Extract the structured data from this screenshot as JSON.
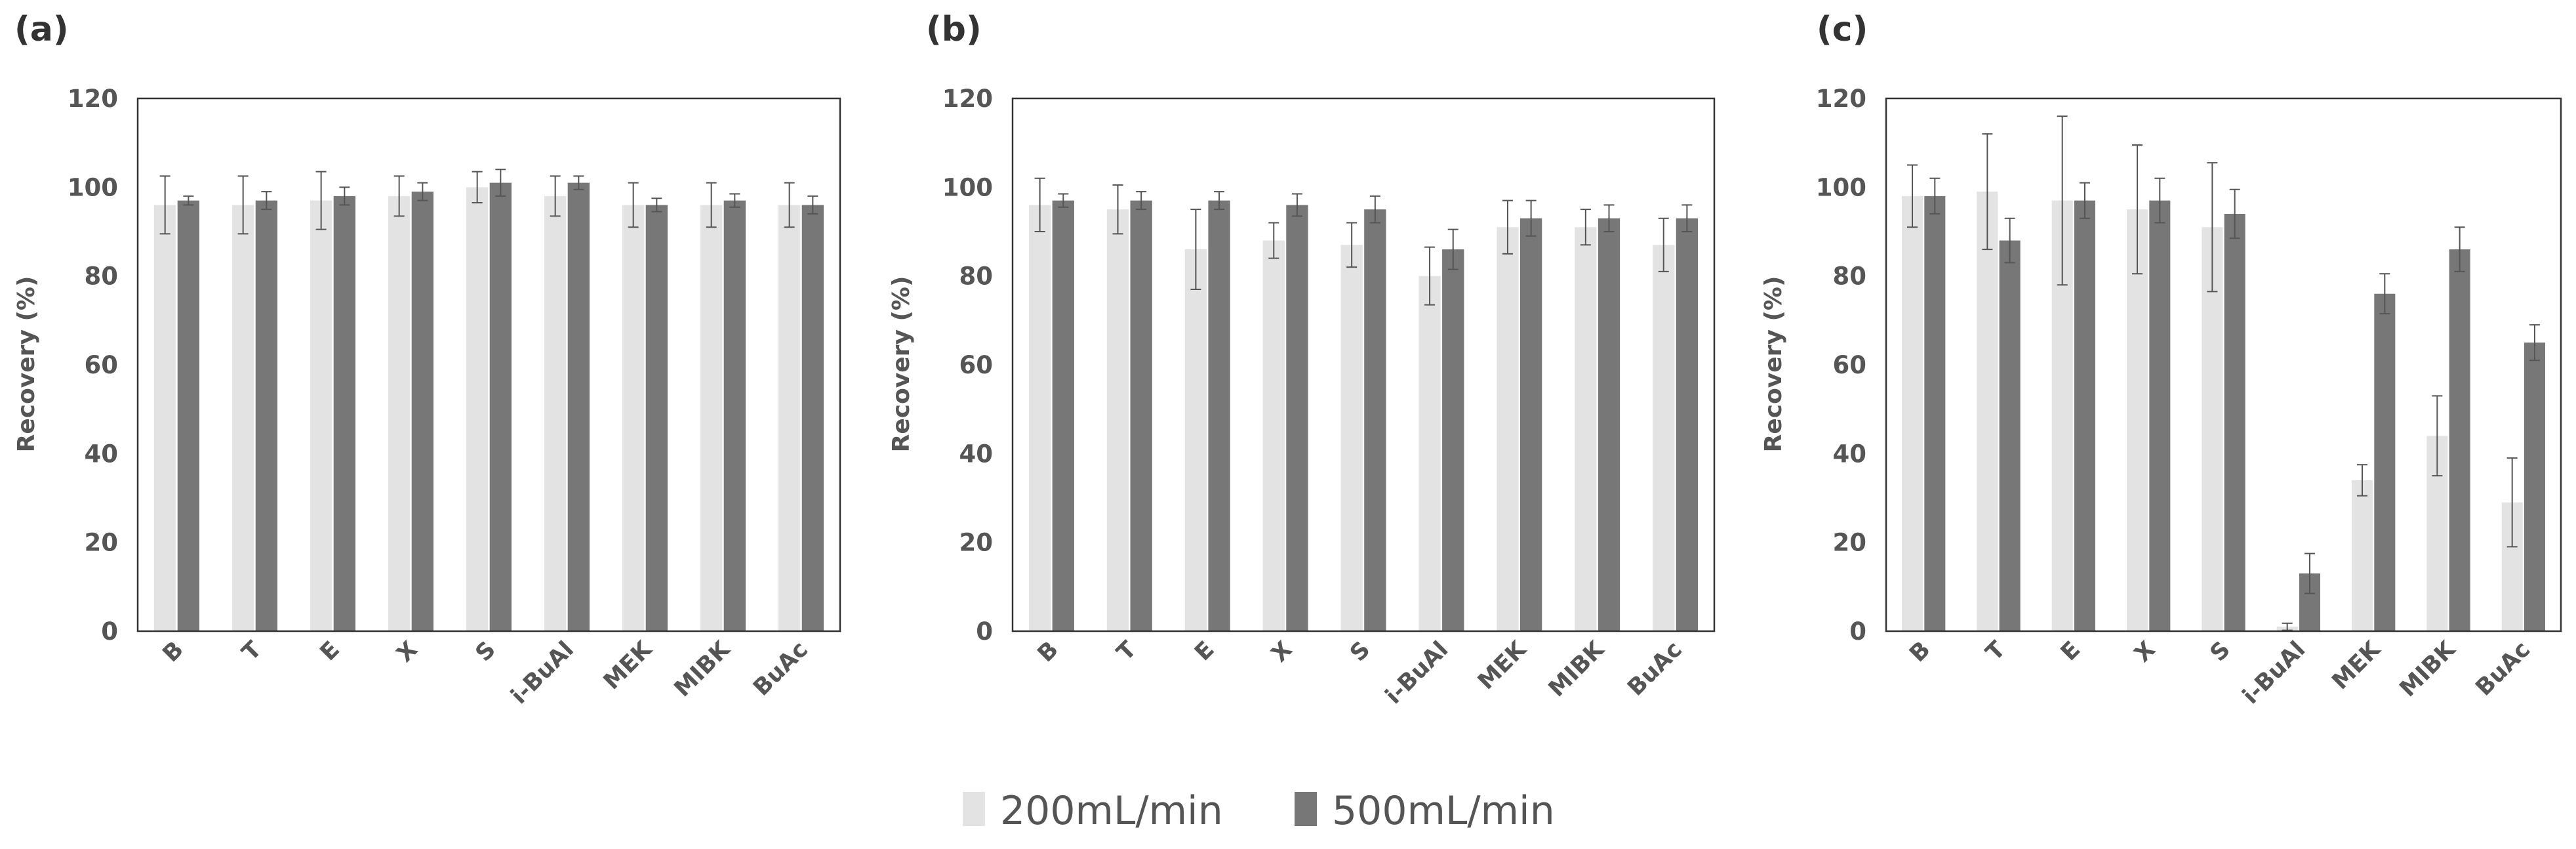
{
  "legend": {
    "series_1": "200mL/min",
    "series_2": "500mL/min"
  },
  "colors": {
    "series_1": "#e3e3e3",
    "series_2": "#777777",
    "axis": "#333333",
    "error_bar": "#555555",
    "text": "#555555"
  },
  "chart_data": [
    {
      "type": "bar",
      "title": "(a)",
      "xlabel": "",
      "ylabel": "Recovery (%)",
      "ylim": [
        0,
        120
      ],
      "yticks": [
        "0",
        "20",
        "40",
        "60",
        "80",
        "100",
        "120"
      ],
      "categories": [
        "B",
        "T",
        "E",
        "X",
        "S",
        "i-BuAl",
        "MEK",
        "MIBK",
        "BuAc"
      ],
      "series": [
        {
          "name": "200mL/min",
          "values": [
            96,
            96,
            97,
            98,
            100,
            98,
            96,
            96,
            96
          ],
          "errors": [
            6.5,
            6.5,
            6.5,
            4.5,
            3.5,
            4.5,
            5,
            5,
            5
          ]
        },
        {
          "name": "500mL/min",
          "values": [
            97,
            97,
            98,
            99,
            101,
            101,
            96,
            97,
            96
          ],
          "errors": [
            1,
            2,
            2,
            2,
            3,
            1.5,
            1.5,
            1.5,
            2
          ]
        }
      ]
    },
    {
      "type": "bar",
      "title": "(b)",
      "xlabel": "",
      "ylabel": "Recovery (%)",
      "ylim": [
        0,
        120
      ],
      "yticks": [
        "0",
        "20",
        "40",
        "60",
        "80",
        "100",
        "120"
      ],
      "categories": [
        "B",
        "T",
        "E",
        "X",
        "S",
        "i-BuAl",
        "MEK",
        "MIBK",
        "BuAc"
      ],
      "series": [
        {
          "name": "200mL/min",
          "values": [
            96,
            95,
            86,
            88,
            87,
            80,
            91,
            91,
            87
          ],
          "errors": [
            6,
            5.5,
            9,
            4,
            5,
            6.5,
            6,
            4,
            6
          ]
        },
        {
          "name": "500mL/min",
          "values": [
            97,
            97,
            97,
            96,
            95,
            86,
            93,
            93,
            93
          ],
          "errors": [
            1.5,
            2,
            2,
            2.5,
            3,
            4.5,
            4,
            3,
            3
          ]
        }
      ]
    },
    {
      "type": "bar",
      "title": "(c)",
      "xlabel": "",
      "ylabel": "Recovery (%)",
      "ylim": [
        0,
        120
      ],
      "yticks": [
        "0",
        "20",
        "40",
        "60",
        "80",
        "100",
        "120"
      ],
      "categories": [
        "B",
        "T",
        "E",
        "X",
        "S",
        "i-BuAl",
        "MEK",
        "MIBK",
        "BuAc"
      ],
      "series": [
        {
          "name": "200mL/min",
          "values": [
            98,
            99,
            97,
            95,
            91,
            1,
            34,
            44,
            29
          ],
          "errors": [
            7,
            13,
            19,
            14.5,
            14.5,
            0.8,
            3.5,
            9,
            10
          ]
        },
        {
          "name": "500mL/min",
          "values": [
            98,
            88,
            97,
            97,
            94,
            13,
            76,
            86,
            65
          ],
          "errors": [
            4,
            5,
            4,
            5,
            5.5,
            4.5,
            4.5,
            5,
            4
          ]
        }
      ]
    }
  ]
}
